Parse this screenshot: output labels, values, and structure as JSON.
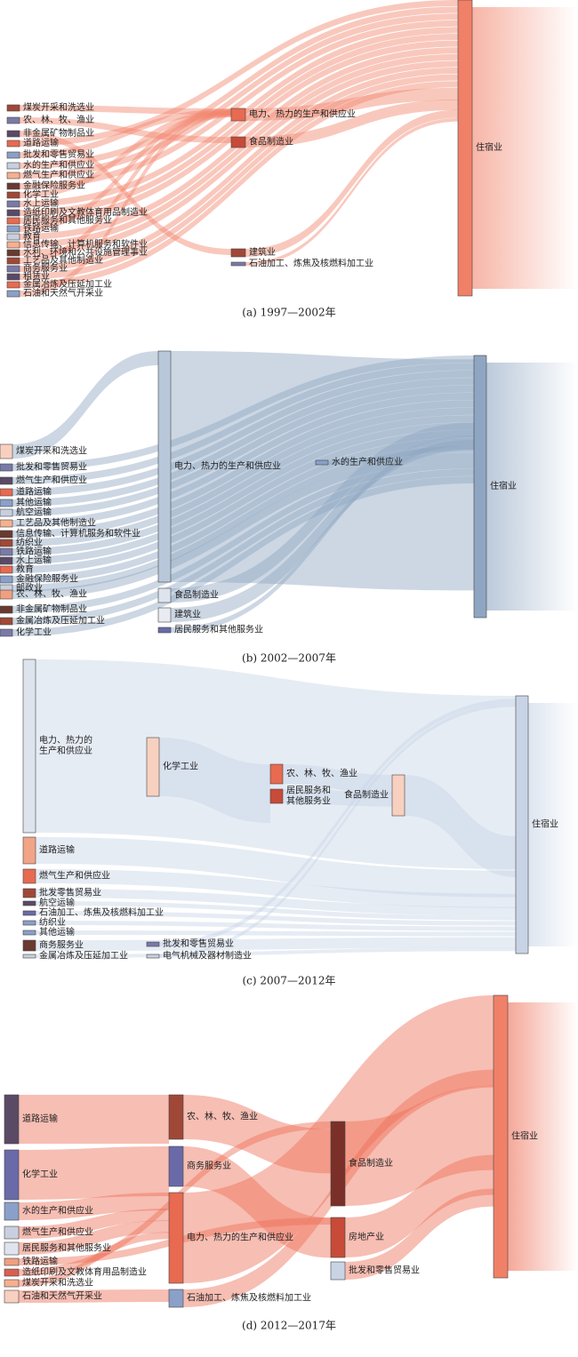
{
  "panels": [
    {
      "caption": "(a) 1997—2002年",
      "nodes": [
        {
          "label": "煤炭开采和洗选业"
        },
        {
          "label": "农、林、牧、渔业"
        },
        {
          "label": "非金属矿物制品业"
        },
        {
          "label": "道路运输"
        },
        {
          "label": "批发和零售贸易业"
        },
        {
          "label": "水的生产和供应业"
        },
        {
          "label": "燃气生产和供应业"
        },
        {
          "label": "金融保险服务业"
        },
        {
          "label": "化学工业"
        },
        {
          "label": "水上运输"
        },
        {
          "label": "造纸印刷及文教体育用品制造业"
        },
        {
          "label": "居民服务和其他服务业"
        },
        {
          "label": "铁路运输"
        },
        {
          "label": "教育"
        },
        {
          "label": "信息传输、计算机服务和软件业"
        },
        {
          "label": "水利、环境和公共设施管理事业"
        },
        {
          "label": "工艺品及其他制造业"
        },
        {
          "label": "商务服务业"
        },
        {
          "label": "租赁业"
        },
        {
          "label": "金属冶炼及压延加工业"
        },
        {
          "label": "石油和天然气开采业"
        },
        {
          "label": "电力、热力的生产和供应业"
        },
        {
          "label": "食品制造业"
        },
        {
          "label": "建筑业"
        },
        {
          "label": "石油加工、炼焦及核燃料加工业"
        },
        {
          "label": "住宿业"
        }
      ]
    },
    {
      "caption": "(b) 2002—2007年",
      "nodes": [
        {
          "label": "煤炭开采和洗选业"
        },
        {
          "label": "批发和零售贸易业"
        },
        {
          "label": "燃气生产和供应业"
        },
        {
          "label": "道路运输"
        },
        {
          "label": "其他运输"
        },
        {
          "label": "航空运输"
        },
        {
          "label": "工艺品及其他制造业"
        },
        {
          "label": "信息传输、计算机服务和软件业"
        },
        {
          "label": "纺织业"
        },
        {
          "label": "铁路运输"
        },
        {
          "label": "水上运输"
        },
        {
          "label": "教育"
        },
        {
          "label": "金融保险服务业"
        },
        {
          "label": "邮政业"
        },
        {
          "label": "农、林、牧、渔业"
        },
        {
          "label": "非金属矿物制品业"
        },
        {
          "label": "金属冶炼及压延加工业"
        },
        {
          "label": "化学工业"
        },
        {
          "label": "电力、热力的生产和供应业"
        },
        {
          "label": "食品制造业"
        },
        {
          "label": "建筑业"
        },
        {
          "label": "居民服务和其他服务业"
        },
        {
          "label": "水的生产和供应业"
        },
        {
          "label": "住宿业"
        }
      ]
    },
    {
      "caption": "(c) 2007—2012年",
      "nodes": [
        {
          "label": [
            "电力、热力的",
            "生产和供应业"
          ]
        },
        {
          "label": "化学工业"
        },
        {
          "label": "农、林、牧、渔业"
        },
        {
          "label": [
            "居民服务和",
            "其他服务业"
          ]
        },
        {
          "label": "食品制造业"
        },
        {
          "label": "住宿业"
        },
        {
          "label": "道路运输"
        },
        {
          "label": "燃气生产和供应业"
        },
        {
          "label": "批发零售贸易业"
        },
        {
          "label": "航空运输"
        },
        {
          "label": "石油加工、炼焦及核燃料加工业"
        },
        {
          "label": "纺织业"
        },
        {
          "label": "其他运输"
        },
        {
          "label": "商务服务业"
        },
        {
          "label": "金属冶炼及压延加工业"
        },
        {
          "label": "批发和零售贸易业"
        },
        {
          "label": "电气机械及器材制造业"
        }
      ]
    },
    {
      "caption": "(d) 2012—2017年",
      "nodes": [
        {
          "label": "道路运输"
        },
        {
          "label": "化学工业"
        },
        {
          "label": "水的生产和供应业"
        },
        {
          "label": "燃气生产和供应业"
        },
        {
          "label": "居民服务和其他服务业"
        },
        {
          "label": "铁路运输"
        },
        {
          "label": "造纸印刷及文教体育用品制造业"
        },
        {
          "label": "煤炭开采和洗选业"
        },
        {
          "label": "石油和天然气开采业"
        },
        {
          "label": "农、林、牧、渔业"
        },
        {
          "label": "商务服务业"
        },
        {
          "label": "电力、热力的生产和供应业"
        },
        {
          "label": "石油加工、炼焦及核燃料加工业"
        },
        {
          "label": "食品制造业"
        },
        {
          "label": "房地产业"
        },
        {
          "label": "批发和零售贸易业"
        },
        {
          "label": "住宿业"
        }
      ]
    }
  ]
}
